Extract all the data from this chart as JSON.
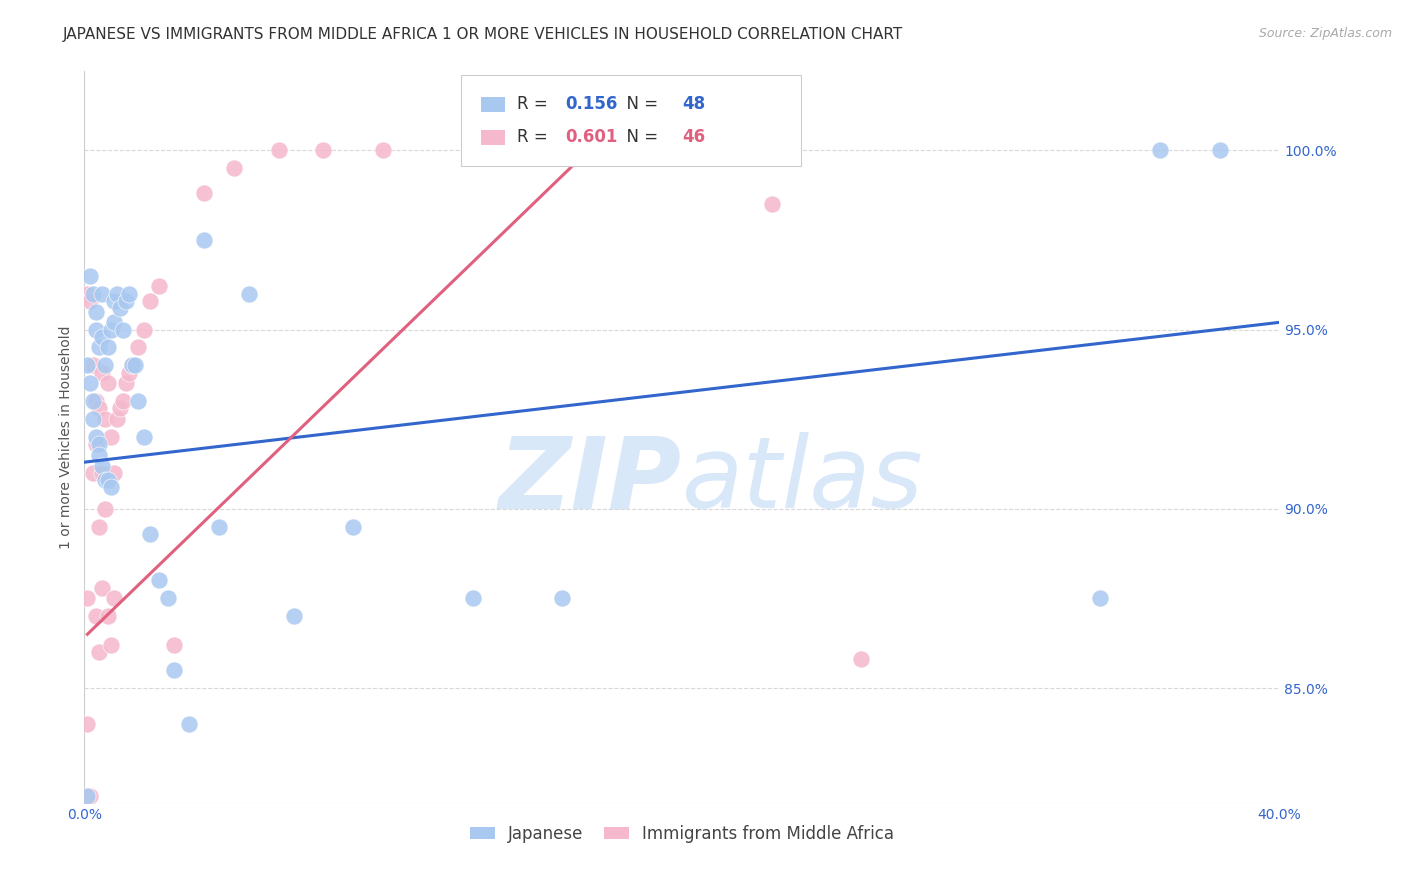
{
  "title": "JAPANESE VS IMMIGRANTS FROM MIDDLE AFRICA 1 OR MORE VEHICLES IN HOUSEHOLD CORRELATION CHART",
  "source": "Source: ZipAtlas.com",
  "ylabel": "1 or more Vehicles in Household",
  "xmin": 0.0,
  "xmax": 0.4,
  "ymin": 0.818,
  "ymax": 1.022,
  "yticks": [
    0.85,
    0.9,
    0.95,
    1.0
  ],
  "ytick_labels": [
    "85.0%",
    "90.0%",
    "95.0%",
    "100.0%"
  ],
  "xtick_positions": [
    0.0,
    0.08,
    0.16,
    0.24,
    0.32,
    0.4
  ],
  "xtick_labels": [
    "0.0%",
    "",
    "",
    "",
    "",
    "40.0%"
  ],
  "blue_R": 0.156,
  "blue_N": 48,
  "pink_R": 0.601,
  "pink_N": 46,
  "legend_label_blue": "Japanese",
  "legend_label_pink": "Immigrants from Middle Africa",
  "blue_color": "#a8c8f0",
  "pink_color": "#f5b8cc",
  "blue_line_color": "#3366cc",
  "pink_line_color": "#e06080",
  "watermark_color": "#d8e8f8",
  "grid_color": "#d8d8d8",
  "background_color": "#ffffff",
  "title_fontsize": 11,
  "axis_label_fontsize": 10,
  "tick_fontsize": 10,
  "legend_fontsize": 12,
  "watermark_fontsize": 72,
  "blue_scatter_x": [
    0.001,
    0.001,
    0.002,
    0.002,
    0.003,
    0.003,
    0.003,
    0.004,
    0.004,
    0.004,
    0.005,
    0.005,
    0.005,
    0.006,
    0.006,
    0.006,
    0.007,
    0.007,
    0.008,
    0.008,
    0.009,
    0.009,
    0.01,
    0.01,
    0.011,
    0.012,
    0.013,
    0.014,
    0.015,
    0.016,
    0.017,
    0.018,
    0.02,
    0.022,
    0.025,
    0.028,
    0.03,
    0.035,
    0.04,
    0.045,
    0.055,
    0.07,
    0.09,
    0.13,
    0.16,
    0.34,
    0.36,
    0.38
  ],
  "blue_scatter_y": [
    0.94,
    0.82,
    0.965,
    0.935,
    0.96,
    0.93,
    0.925,
    0.955,
    0.95,
    0.92,
    0.918,
    0.915,
    0.945,
    0.96,
    0.948,
    0.912,
    0.94,
    0.908,
    0.945,
    0.908,
    0.95,
    0.906,
    0.952,
    0.958,
    0.96,
    0.956,
    0.95,
    0.958,
    0.96,
    0.94,
    0.94,
    0.93,
    0.92,
    0.893,
    0.88,
    0.875,
    0.855,
    0.84,
    0.975,
    0.895,
    0.96,
    0.87,
    0.895,
    0.875,
    0.875,
    0.875,
    1.0,
    1.0
  ],
  "pink_scatter_x": [
    0.001,
    0.001,
    0.002,
    0.002,
    0.003,
    0.003,
    0.004,
    0.004,
    0.004,
    0.005,
    0.005,
    0.005,
    0.006,
    0.006,
    0.006,
    0.007,
    0.007,
    0.008,
    0.008,
    0.009,
    0.009,
    0.01,
    0.01,
    0.011,
    0.012,
    0.013,
    0.014,
    0.015,
    0.016,
    0.018,
    0.02,
    0.022,
    0.025,
    0.03,
    0.04,
    0.05,
    0.065,
    0.08,
    0.1,
    0.13,
    0.15,
    0.17,
    0.2,
    0.23,
    0.26,
    0.001
  ],
  "pink_scatter_y": [
    0.96,
    0.875,
    0.958,
    0.82,
    0.94,
    0.91,
    0.93,
    0.918,
    0.87,
    0.928,
    0.895,
    0.86,
    0.938,
    0.91,
    0.878,
    0.925,
    0.9,
    0.935,
    0.87,
    0.92,
    0.862,
    0.91,
    0.875,
    0.925,
    0.928,
    0.93,
    0.935,
    0.938,
    0.94,
    0.945,
    0.95,
    0.958,
    0.962,
    0.862,
    0.988,
    0.995,
    1.0,
    1.0,
    1.0,
    1.0,
    1.0,
    1.0,
    1.0,
    0.985,
    0.858,
    0.84
  ],
  "blue_line_x": [
    0.0,
    0.4
  ],
  "blue_line_y": [
    0.913,
    0.952
  ],
  "pink_line_x": [
    0.001,
    0.175
  ],
  "pink_line_y": [
    0.865,
    1.005
  ]
}
